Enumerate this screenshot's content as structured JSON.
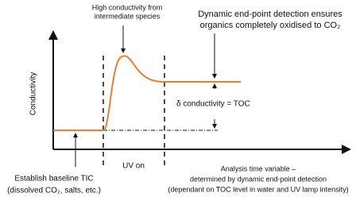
{
  "annotations": {
    "peak": [
      "High conductivity from",
      "intermediate species"
    ],
    "endpoint": [
      "Dynamic end-point detection ensures",
      "organics completely oxidised to CO₂"
    ],
    "y_axis": "Conductivity",
    "delta": "δ conductivity = TOC",
    "uv_on": "UV on",
    "baseline": [
      "Establish baseline TIC",
      "(dissolved CO₂, salts, etc.)"
    ],
    "analysis": [
      "Analysis time variable –",
      "determined by dynamic end-point detection",
      "(dependant on TOC level in water and UV lamp intensity)"
    ]
  }
}
